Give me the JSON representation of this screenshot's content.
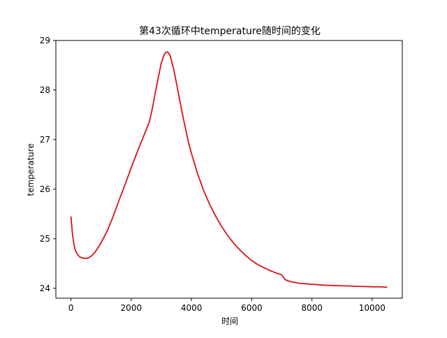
{
  "chart_data": {
    "type": "line",
    "title": "第43次循环中temperature随时间的变化",
    "xlabel": "时间",
    "ylabel": "temperature",
    "xlim": [
      -500,
      11000
    ],
    "ylim": [
      23.8,
      29.0
    ],
    "xticks": [
      0,
      2000,
      4000,
      6000,
      8000,
      10000
    ],
    "yticks": [
      24,
      25,
      26,
      27,
      28,
      29
    ],
    "grid": false,
    "legend": "none",
    "series": [
      {
        "color": "#dd1111",
        "x": [
          0,
          50,
          100,
          150,
          200,
          250,
          300,
          400,
          500,
          600,
          700,
          800,
          900,
          1000,
          1200,
          1400,
          1600,
          1800,
          2000,
          2200,
          2400,
          2600,
          2700,
          2800,
          2900,
          3000,
          3100,
          3150,
          3200,
          3250,
          3300,
          3400,
          3500,
          3600,
          3700,
          3800,
          3900,
          4000,
          4200,
          4400,
          4600,
          4800,
          5000,
          5200,
          5400,
          5600,
          5800,
          6000,
          6200,
          6400,
          6600,
          6800,
          7000,
          7050,
          7100,
          7200,
          7400,
          7600,
          7800,
          8000,
          8500,
          9000,
          9500,
          10000,
          10300,
          10500
        ],
        "y": [
          25.45,
          25.1,
          24.88,
          24.76,
          24.7,
          24.66,
          24.63,
          24.61,
          24.6,
          24.62,
          24.66,
          24.73,
          24.82,
          24.92,
          25.15,
          25.45,
          25.78,
          26.1,
          26.43,
          26.75,
          27.05,
          27.35,
          27.62,
          27.95,
          28.25,
          28.55,
          28.72,
          28.76,
          28.77,
          28.74,
          28.68,
          28.45,
          28.15,
          27.83,
          27.52,
          27.23,
          26.95,
          26.72,
          26.32,
          25.98,
          25.7,
          25.46,
          25.25,
          25.07,
          24.91,
          24.78,
          24.66,
          24.56,
          24.48,
          24.42,
          24.36,
          24.31,
          24.27,
          24.23,
          24.18,
          24.15,
          24.12,
          24.1,
          24.09,
          24.08,
          24.06,
          24.05,
          24.04,
          24.03,
          24.03,
          24.02
        ]
      }
    ]
  }
}
